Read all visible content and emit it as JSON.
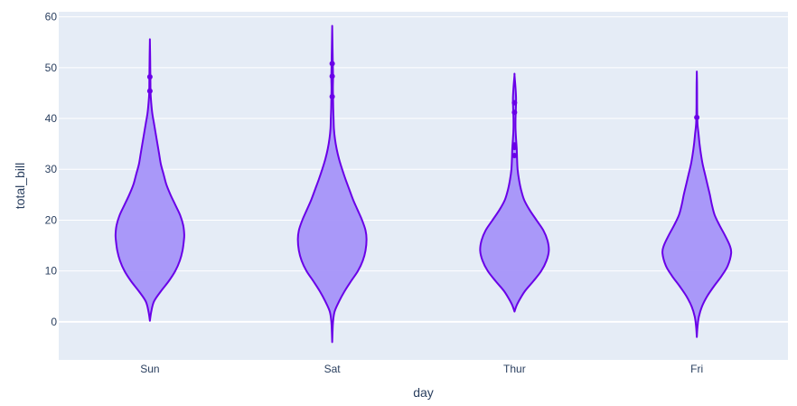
{
  "chart_data": {
    "type": "violin",
    "xlabel": "day",
    "ylabel": "total_bill",
    "categories": [
      "Sun",
      "Sat",
      "Thur",
      "Fri"
    ],
    "ylim": [
      -7.5,
      61
    ],
    "yticks": [
      0,
      10,
      20,
      30,
      40,
      50,
      60
    ],
    "grid": true,
    "legend": "none",
    "colors": {
      "plot_background": "#E5ECF6",
      "violin_fill": "#A594F9",
      "violin_line": "#6A00E8",
      "outlier": "#6A00E8",
      "grid": "#FFFFFF",
      "text": "#2a3f5f"
    },
    "violins": [
      {
        "category": "Sun",
        "min": 0.2,
        "max": 55.3,
        "profile": [
          [
            0.2,
            0.0
          ],
          [
            2,
            0.04
          ],
          [
            4,
            0.12
          ],
          [
            6,
            0.32
          ],
          [
            8,
            0.55
          ],
          [
            10,
            0.74
          ],
          [
            12,
            0.87
          ],
          [
            14,
            0.95
          ],
          [
            16,
            0.99
          ],
          [
            17.2,
            1.0
          ],
          [
            19,
            0.97
          ],
          [
            21,
            0.88
          ],
          [
            23,
            0.74
          ],
          [
            25,
            0.6
          ],
          [
            27,
            0.48
          ],
          [
            29,
            0.4
          ],
          [
            31,
            0.32
          ],
          [
            33,
            0.27
          ],
          [
            35,
            0.22
          ],
          [
            37,
            0.17
          ],
          [
            39,
            0.12
          ],
          [
            41,
            0.07
          ],
          [
            43,
            0.04
          ],
          [
            45,
            0.02
          ],
          [
            48,
            0.015
          ],
          [
            51,
            0.01
          ],
          [
            53,
            0.006
          ],
          [
            55.3,
            0.0
          ]
        ],
        "outliers": [
          45.4,
          48.2
        ]
      },
      {
        "category": "Sat",
        "min": -4.0,
        "max": 58.0,
        "profile": [
          [
            -4.0,
            0.0
          ],
          [
            -2,
            0.01
          ],
          [
            0,
            0.025
          ],
          [
            2,
            0.07
          ],
          [
            4,
            0.2
          ],
          [
            6,
            0.36
          ],
          [
            8,
            0.55
          ],
          [
            10,
            0.75
          ],
          [
            12,
            0.89
          ],
          [
            14,
            0.97
          ],
          [
            16.2,
            1.0
          ],
          [
            18,
            0.97
          ],
          [
            20,
            0.87
          ],
          [
            22,
            0.74
          ],
          [
            24,
            0.61
          ],
          [
            26,
            0.5
          ],
          [
            28,
            0.39
          ],
          [
            30,
            0.29
          ],
          [
            32,
            0.2
          ],
          [
            34,
            0.13
          ],
          [
            36,
            0.08
          ],
          [
            38,
            0.05
          ],
          [
            40,
            0.04
          ],
          [
            42,
            0.03
          ],
          [
            44,
            0.025
          ],
          [
            46,
            0.02
          ],
          [
            48,
            0.025
          ],
          [
            50,
            0.02
          ],
          [
            52,
            0.015
          ],
          [
            54,
            0.01
          ],
          [
            56,
            0.005
          ],
          [
            58.0,
            0.0
          ]
        ],
        "outliers": [
          44.3,
          48.3,
          50.8
        ]
      },
      {
        "category": "Thur",
        "min": 2.0,
        "max": 48.5,
        "profile": [
          [
            2.0,
            0.0
          ],
          [
            3,
            0.05
          ],
          [
            4,
            0.12
          ],
          [
            6,
            0.3
          ],
          [
            8,
            0.55
          ],
          [
            10,
            0.78
          ],
          [
            12,
            0.93
          ],
          [
            14,
            1.0
          ],
          [
            16,
            0.96
          ],
          [
            18,
            0.84
          ],
          [
            20,
            0.64
          ],
          [
            22,
            0.44
          ],
          [
            24,
            0.28
          ],
          [
            26,
            0.19
          ],
          [
            28,
            0.13
          ],
          [
            30,
            0.09
          ],
          [
            32,
            0.075
          ],
          [
            34,
            0.065
          ],
          [
            36,
            0.045
          ],
          [
            38,
            0.03
          ],
          [
            40,
            0.03
          ],
          [
            42,
            0.04
          ],
          [
            44,
            0.045
          ],
          [
            46,
            0.03
          ],
          [
            48.5,
            0.0
          ]
        ],
        "outliers": [
          32.7,
          34.3,
          34.8,
          41.2,
          43.1
        ]
      },
      {
        "category": "Fri",
        "min": -3.0,
        "max": 49.0,
        "profile": [
          [
            -3.0,
            0.0
          ],
          [
            -1,
            0.02
          ],
          [
            1,
            0.06
          ],
          [
            3,
            0.15
          ],
          [
            5,
            0.3
          ],
          [
            7,
            0.5
          ],
          [
            9,
            0.72
          ],
          [
            11,
            0.9
          ],
          [
            13.5,
            1.0
          ],
          [
            15,
            0.96
          ],
          [
            17,
            0.82
          ],
          [
            19,
            0.66
          ],
          [
            21,
            0.52
          ],
          [
            23,
            0.44
          ],
          [
            25,
            0.38
          ],
          [
            27,
            0.31
          ],
          [
            29,
            0.24
          ],
          [
            31,
            0.17
          ],
          [
            33,
            0.12
          ],
          [
            35,
            0.08
          ],
          [
            37,
            0.05
          ],
          [
            39,
            0.02
          ],
          [
            42,
            0.01
          ],
          [
            45,
            0.008
          ],
          [
            47,
            0.006
          ],
          [
            49.0,
            0.0
          ]
        ],
        "outliers": [
          40.2
        ]
      }
    ]
  }
}
